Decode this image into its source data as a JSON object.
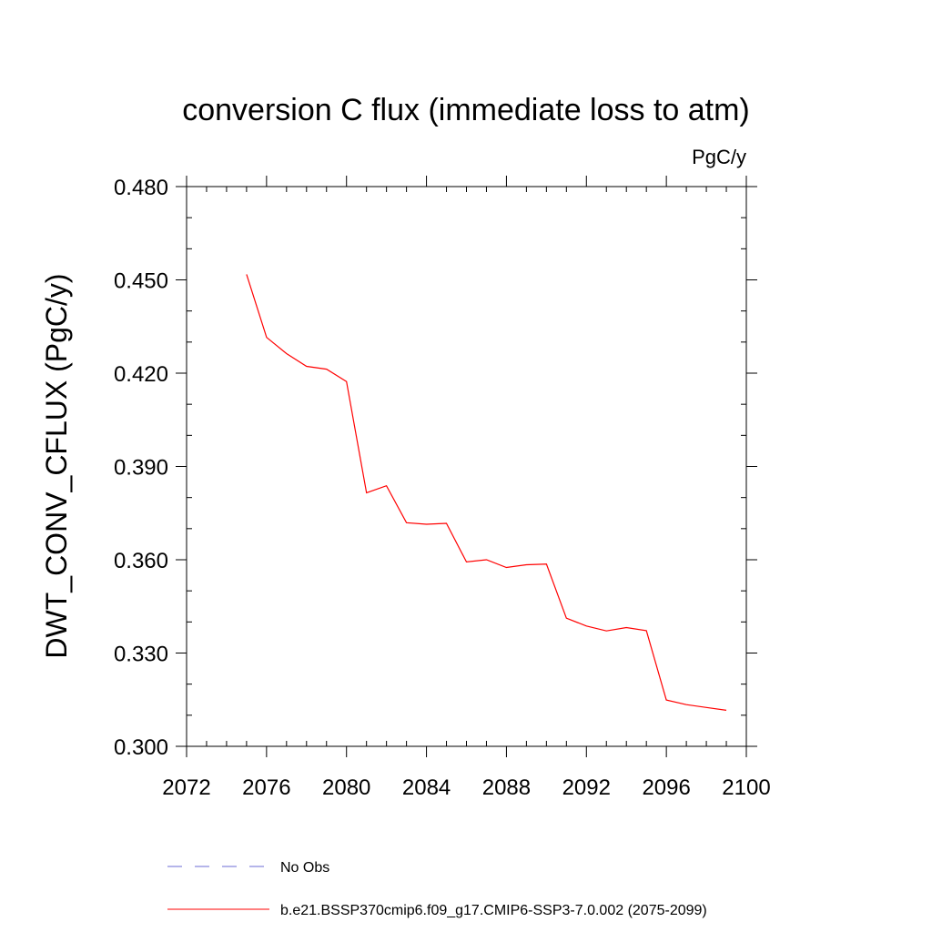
{
  "chart_data": {
    "type": "line",
    "title": "conversion C flux (immediate loss to atm)",
    "units": "PgC/y",
    "xlabel": "",
    "ylabel": "DWT_CONV_CFLUX  (PgC/y)",
    "xlim": [
      2072,
      2100
    ],
    "ylim": [
      0.3,
      0.48
    ],
    "x_ticks": [
      "2072",
      "2076",
      "2080",
      "2084",
      "2088",
      "2092",
      "2096",
      "2100"
    ],
    "y_ticks": [
      "0.300",
      "0.330",
      "0.360",
      "0.390",
      "0.420",
      "0.450",
      "0.480"
    ],
    "series": [
      {
        "name": "b.e21.BSSP370cmip6.f09_g17.CMIP6-SSP3-7.0.002 (2075-2099)",
        "color": "#ff0000",
        "x": [
          2075,
          2076,
          2077,
          2078,
          2079,
          2080,
          2081,
          2082,
          2083,
          2084,
          2085,
          2086,
          2087,
          2088,
          2089,
          2090,
          2091,
          2092,
          2093,
          2094,
          2095,
          2096,
          2097,
          2098,
          2099
        ],
        "y": [
          0.4518,
          0.4315,
          0.4263,
          0.4222,
          0.4213,
          0.4173,
          0.3815,
          0.3838,
          0.3719,
          0.3714,
          0.3717,
          0.3593,
          0.36,
          0.3575,
          0.3584,
          0.3586,
          0.3412,
          0.3387,
          0.3371,
          0.3382,
          0.3372,
          0.3149,
          0.3134,
          0.3125,
          0.3116
        ]
      }
    ],
    "legend": [
      {
        "label": "No Obs",
        "color": "#6b6bd6",
        "style": "dashed"
      },
      {
        "label": "b.e21.BSSP370cmip6.f09_g17.CMIP6-SSP3-7.0.002 (2075-2099)",
        "color": "#ff0000",
        "style": "solid"
      }
    ]
  }
}
